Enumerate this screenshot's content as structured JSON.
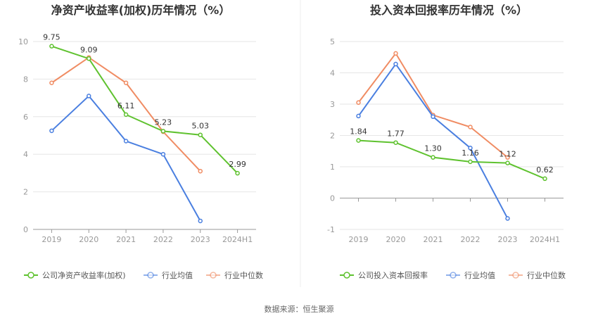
{
  "source": "数据来源：恒生聚源",
  "colors": {
    "company": "#5fc22f",
    "avg": "#4a7fe0",
    "median": "#f08c63",
    "grid": "#e6e6e6",
    "axis": "#999999"
  },
  "chart_data": [
    {
      "type": "line",
      "title": "净资产收益率(加权)历年情况（%）",
      "categories": [
        "2019",
        "2020",
        "2021",
        "2022",
        "2023",
        "2024H1"
      ],
      "ylim": [
        0,
        10
      ],
      "yticks": [
        "0",
        "2",
        "4",
        "6",
        "8",
        "10"
      ],
      "series": [
        {
          "name": "公司净资产收益率(加权)",
          "role": "company",
          "values": [
            9.75,
            9.09,
            6.11,
            5.23,
            5.03,
            2.99
          ],
          "labels": [
            "9.75",
            "9.09",
            "6.11",
            "5.23",
            "5.03",
            "2.99"
          ]
        },
        {
          "name": "行业均值",
          "role": "avg",
          "values": [
            5.25,
            7.1,
            4.7,
            4.0,
            0.45,
            null
          ]
        },
        {
          "name": "行业中位数",
          "role": "median",
          "values": [
            7.8,
            9.15,
            7.8,
            5.2,
            3.1,
            null
          ]
        }
      ],
      "grid": true,
      "legend": "bottom"
    },
    {
      "type": "line",
      "title": "投入资本回报率历年情况（%）",
      "categories": [
        "2019",
        "2020",
        "2021",
        "2022",
        "2023",
        "2024H1"
      ],
      "ylim": [
        -1,
        5
      ],
      "yticks": [
        "-1",
        "0",
        "1",
        "2",
        "3",
        "4",
        "5"
      ],
      "series": [
        {
          "name": "公司投入资本回报率",
          "role": "company",
          "values": [
            1.84,
            1.77,
            1.3,
            1.16,
            1.12,
            0.62
          ],
          "labels": [
            "1.84",
            "1.77",
            "1.30",
            "1.16",
            "1.12",
            "0.62"
          ]
        },
        {
          "name": "行业均值",
          "role": "avg",
          "values": [
            2.62,
            4.28,
            2.6,
            1.6,
            -0.65,
            null
          ]
        },
        {
          "name": "行业中位数",
          "role": "median",
          "values": [
            3.05,
            4.62,
            2.65,
            2.27,
            1.3,
            null
          ]
        }
      ],
      "grid": true,
      "legend": "bottom"
    }
  ]
}
